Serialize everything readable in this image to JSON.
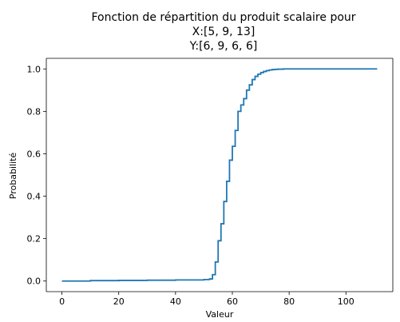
{
  "chart_data": {
    "type": "line",
    "title_lines": [
      "Fonction de répartition du produit scalaire pour",
      "X:[5, 9, 13]",
      "Y:[6, 9, 6, 6]"
    ],
    "xlabel": "Valeur",
    "ylabel": "Probabilité",
    "xlim": [
      -5.5,
      116.5
    ],
    "ylim": [
      -0.05,
      1.05
    ],
    "xticks": [
      0,
      20,
      40,
      60,
      80,
      100
    ],
    "yticks": [
      0.0,
      0.2,
      0.4,
      0.6,
      0.8,
      1.0
    ],
    "xtick_labels": [
      "0",
      "20",
      "40",
      "60",
      "80",
      "100"
    ],
    "ytick_labels": [
      "0.0",
      "0.2",
      "0.4",
      "0.6",
      "0.8",
      "1.0"
    ],
    "step": true,
    "series": [
      {
        "color": "#1f77b4",
        "x": [
          0,
          10,
          20,
          30,
          40,
          50,
          52,
          53,
          54,
          55,
          56,
          57,
          58,
          59,
          60,
          61,
          62,
          63,
          64,
          65,
          66,
          67,
          68,
          69,
          70,
          71,
          72,
          73,
          74,
          75,
          76,
          78,
          80,
          85,
          90,
          100,
          111
        ],
        "y": [
          0.0,
          0.002,
          0.003,
          0.004,
          0.005,
          0.007,
          0.01,
          0.03,
          0.09,
          0.19,
          0.27,
          0.375,
          0.47,
          0.57,
          0.635,
          0.71,
          0.8,
          0.83,
          0.86,
          0.9,
          0.925,
          0.95,
          0.965,
          0.975,
          0.983,
          0.988,
          0.992,
          0.995,
          0.997,
          0.998,
          0.999,
          1.0,
          1.0,
          1.0,
          1.0,
          1.0,
          1.0
        ]
      }
    ]
  }
}
